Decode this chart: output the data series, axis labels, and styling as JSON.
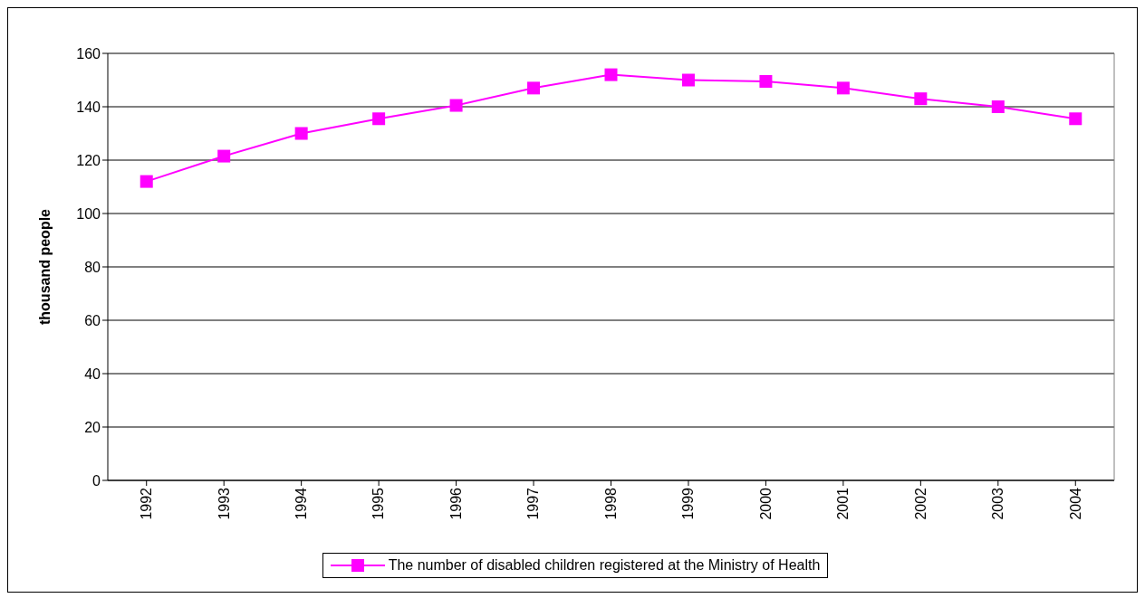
{
  "chart_data": {
    "type": "line",
    "ylabel": "thousand people",
    "categories": [
      "1992",
      "1993",
      "1994",
      "1995",
      "1996",
      "1997",
      "1998",
      "1999",
      "2000",
      "2001",
      "2002",
      "2003",
      "2004"
    ],
    "series": [
      {
        "name": "The number of disabled children registered at the Ministry of Health",
        "color": "#ff00ff",
        "values": [
          112,
          121.5,
          130,
          135.5,
          140.5,
          147,
          152,
          150,
          149.5,
          147,
          143,
          140,
          135.5
        ]
      }
    ],
    "ylim": [
      0,
      160
    ],
    "yticks": [
      0,
      20,
      40,
      60,
      80,
      100,
      120,
      140,
      160
    ],
    "grid": "y",
    "legend": "bottom",
    "marker": "square",
    "line_style": "solid"
  }
}
